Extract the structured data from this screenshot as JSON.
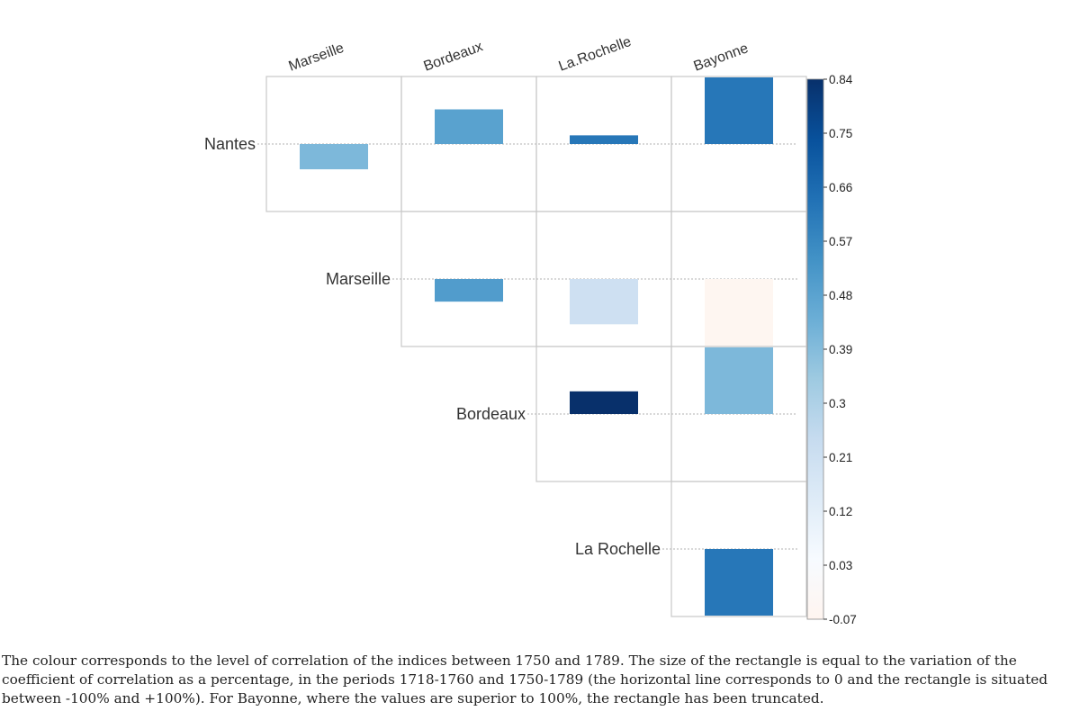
{
  "chart_data": {
    "type": "heatmap",
    "title": "",
    "row_labels": [
      "Nantes",
      "Marseille",
      "Bordeaux",
      "La Rochelle"
    ],
    "column_labels": [
      "Marseille",
      "Bordeaux",
      "La.Rochelle",
      "Bayonne"
    ],
    "cells": [
      {
        "row": "Nantes",
        "column": "Marseille",
        "correlation": 0.4,
        "variation_pct": -38
      },
      {
        "row": "Nantes",
        "column": "Bordeaux",
        "correlation": 0.48,
        "variation_pct": 52
      },
      {
        "row": "Nantes",
        "column": "La.Rochelle",
        "correlation": 0.62,
        "variation_pct": 13
      },
      {
        "row": "Nantes",
        "column": "Bayonne",
        "correlation": 0.62,
        "variation_pct": 100
      },
      {
        "row": "Marseille",
        "column": "Bordeaux",
        "correlation": 0.5,
        "variation_pct": -34
      },
      {
        "row": "Marseille",
        "column": "La.Rochelle",
        "correlation": 0.2,
        "variation_pct": -68
      },
      {
        "row": "Marseille",
        "column": "Bayonne",
        "correlation": -0.06,
        "variation_pct": -100
      },
      {
        "row": "Bordeaux",
        "column": "La.Rochelle",
        "correlation": 0.84,
        "variation_pct": 34
      },
      {
        "row": "Bordeaux",
        "column": "Bayonne",
        "correlation": 0.4,
        "variation_pct": 100
      },
      {
        "row": "La Rochelle",
        "column": "Bayonne",
        "correlation": 0.62,
        "variation_pct": -100
      }
    ],
    "colorbar": {
      "ticks": [
        "0.84",
        "0.75",
        "0.66",
        "0.57",
        "0.48",
        "0.39",
        "0.3",
        "0.21",
        "0.12",
        "0.03",
        "-0.07"
      ],
      "min": -0.07,
      "max": 0.84
    },
    "variation_range": [
      -100,
      100
    ]
  },
  "colors": {
    "scale": [
      "#fff5f0",
      "#f7fbff",
      "#deebf7",
      "#c6dbef",
      "#9ecae1",
      "#6baed6",
      "#4292c6",
      "#2171b5",
      "#08519c",
      "#08306b"
    ],
    "grid": "#c8c8c8",
    "baseline": "#c0c0c0"
  },
  "caption": "The colour corresponds to the level of correlation of the indices between 1750 and 1789. The size of the rectangle is equal to the variation of the coefficient of correlation as a percentage, in the periods 1718-1760 and 1750-1789 (the horizontal line corresponds to 0 and the rectangle is situated between -100% and +100%). For Bayonne, where the values are superior to 100%, the rectangle has been truncated."
}
